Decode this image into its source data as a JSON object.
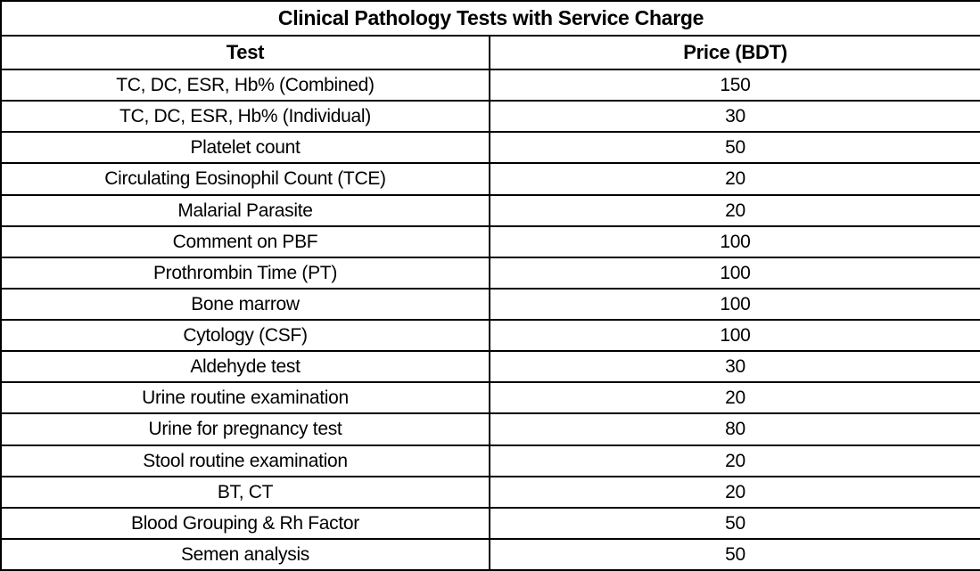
{
  "table": {
    "title": "Clinical Pathology Tests with Service Charge",
    "columns": [
      "Test",
      "Price (BDT)"
    ],
    "rows": [
      {
        "test": "TC, DC, ESR, Hb% (Combined)",
        "price": "150"
      },
      {
        "test": "TC, DC, ESR, Hb% (Individual)",
        "price": "30"
      },
      {
        "test": "Platelet count",
        "price": "50"
      },
      {
        "test": "Circulating Eosinophil Count (TCE)",
        "price": "20"
      },
      {
        "test": "Malarial Parasite",
        "price": "20"
      },
      {
        "test": "Comment on PBF",
        "price": "100"
      },
      {
        "test": "Prothrombin Time (PT)",
        "price": "100"
      },
      {
        "test": "Bone marrow",
        "price": "100"
      },
      {
        "test": "Cytology (CSF)",
        "price": "100"
      },
      {
        "test": "Aldehyde test",
        "price": "30"
      },
      {
        "test": "Urine routine examination",
        "price": "20"
      },
      {
        "test": "Urine for pregnancy test",
        "price": "80"
      },
      {
        "test": "Stool routine examination",
        "price": "20"
      },
      {
        "test": "BT, CT",
        "price": "20"
      },
      {
        "test": "Blood Grouping & Rh Factor",
        "price": "50"
      },
      {
        "test": "Semen analysis",
        "price": "50"
      }
    ],
    "colors": {
      "border": "#000000",
      "background": "#ffffff",
      "text": "#000000"
    }
  }
}
